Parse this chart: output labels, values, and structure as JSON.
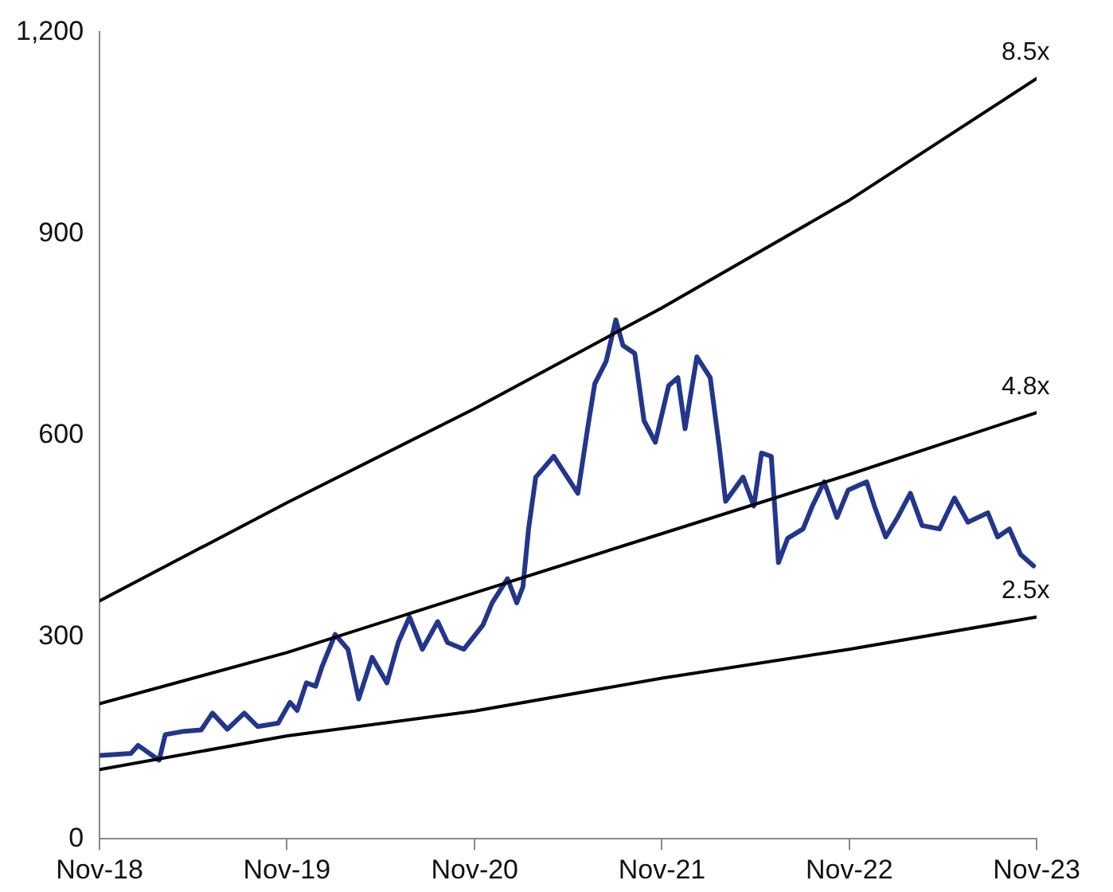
{
  "chart_data": {
    "type": "line",
    "xlim": [
      "2018-11-01",
      "2023-11-01"
    ],
    "xticks": [
      {
        "value": "2018-11-01",
        "label": "Nov-18"
      },
      {
        "value": "2019-11-01",
        "label": "Nov-19"
      },
      {
        "value": "2020-11-01",
        "label": "Nov-20"
      },
      {
        "value": "2021-11-01",
        "label": "Nov-21"
      },
      {
        "value": "2022-11-01",
        "label": "Nov-22"
      },
      {
        "value": "2023-11-01",
        "label": "Nov-23"
      }
    ],
    "ylim": [
      0,
      1200
    ],
    "yticks": [
      0,
      300,
      600,
      900,
      {
        "value": 1200,
        "label": "1,200"
      }
    ],
    "legend": false,
    "marker": "none",
    "line_style": "solid",
    "series": [
      {
        "name": "8.5x",
        "color": "#000000",
        "x": [
          "2018-11-01",
          "2019-11-01",
          "2020-11-01",
          "2021-11-01",
          "2022-11-01",
          "2023-11-01"
        ],
        "values": [
          354,
          500,
          640,
          790,
          950,
          1131
        ]
      },
      {
        "name": "4.8x",
        "color": "#000000",
        "x": [
          "2018-11-01",
          "2019-11-01",
          "2020-11-01",
          "2021-11-01",
          "2022-11-01",
          "2023-11-01"
        ],
        "values": [
          201,
          277,
          366,
          454,
          542,
          634
        ]
      },
      {
        "name": "2.5x",
        "color": "#000000",
        "x": [
          "2018-11-01",
          "2019-11-01",
          "2020-11-01",
          "2021-11-01",
          "2022-11-01",
          "2023-11-01"
        ],
        "values": [
          103,
          153,
          190,
          239,
          282,
          330
        ]
      },
      {
        "color": "#22368c",
        "x": [
          "2018-11-03",
          "2019-01-01",
          "2019-01-15",
          "2019-02-25",
          "2019-03-09",
          "2019-04-15",
          "2019-05-18",
          "2019-06-09",
          "2019-07-08",
          "2019-08-10",
          "2019-09-05",
          "2019-10-15",
          "2019-11-07",
          "2019-11-21",
          "2019-12-09",
          "2019-12-27",
          "2020-01-08",
          "2020-02-03",
          "2020-02-28",
          "2020-03-20",
          "2020-04-15",
          "2020-05-14",
          "2020-06-05",
          "2020-06-27",
          "2020-07-22",
          "2020-08-21",
          "2020-09-09",
          "2020-10-11",
          "2020-11-17",
          "2020-12-05",
          "2021-01-04",
          "2021-01-22",
          "2021-02-03",
          "2021-02-14",
          "2021-02-28",
          "2021-04-04",
          "2021-05-21",
          "2021-06-09",
          "2021-06-23",
          "2021-07-15",
          "2021-08-03",
          "2021-08-17",
          "2021-09-09",
          "2021-09-27",
          "2021-10-19",
          "2021-11-14",
          "2021-12-02",
          "2021-12-16",
          "2022-01-08",
          "2022-02-03",
          "2022-02-21",
          "2022-03-05",
          "2022-04-08",
          "2022-04-29",
          "2022-05-14",
          "2022-06-02",
          "2022-06-16",
          "2022-07-04",
          "2022-08-03",
          "2022-08-21",
          "2022-09-13",
          "2022-10-08",
          "2022-10-30",
          "2022-12-05",
          "2022-12-20",
          "2023-01-11",
          "2023-02-03",
          "2023-02-28",
          "2023-03-23",
          "2023-04-26",
          "2023-05-25",
          "2023-06-20",
          "2023-07-29",
          "2023-08-17",
          "2023-09-09",
          "2023-10-01",
          "2023-10-26"
        ],
        "values": [
          124,
          127,
          139,
          117,
          155,
          160,
          162,
          187,
          163,
          187,
          167,
          172,
          203,
          191,
          232,
          227,
          255,
          304,
          282,
          208,
          270,
          232,
          292,
          330,
          282,
          323,
          292,
          282,
          318,
          351,
          387,
          351,
          375,
          461,
          538,
          569,
          514,
          610,
          677,
          710,
          772,
          734,
          722,
          622,
          590,
          674,
          686,
          610,
          717,
          686,
          581,
          502,
          538,
          495,
          574,
          569,
          411,
          447,
          461,
          495,
          531,
          478,
          519,
          531,
          495,
          449,
          478,
          514,
          466,
          461,
          507,
          471,
          485,
          449,
          461,
          423,
          406
        ]
      }
    ]
  }
}
